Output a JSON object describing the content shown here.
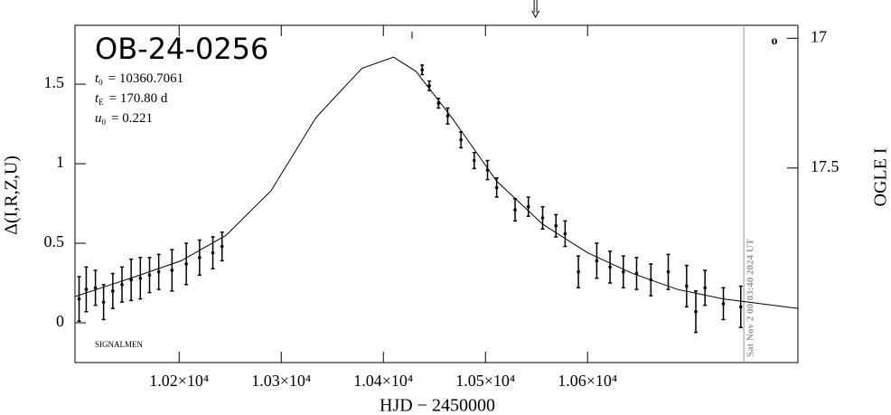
{
  "chart_data": {
    "type": "lightcurve",
    "title": "OB-24-0256",
    "parameters": [
      {
        "symbol": "t",
        "subscript": "0",
        "text": "= 10360.7061"
      },
      {
        "symbol": "t",
        "subscript": "E",
        "text": "= 170.80 d"
      },
      {
        "symbol": "u",
        "subscript": "0",
        "text": "= 0.221"
      }
    ],
    "credit": "SIGNALMEN",
    "x_label": "HJD − 2450000",
    "y_label": "Δ(I,R,Z,U)",
    "y2_label": "OGLE I",
    "legend_symbol": "o",
    "top_mark": "I",
    "time_line": {
      "x": 10753,
      "label": "Sat Nov  2 00:03:40 2024 UT",
      "color": "#999999"
    },
    "arrow_x": 10549,
    "xlim": [
      10098,
      10806
    ],
    "ylim": [
      -0.25,
      1.87
    ],
    "y2lim": [
      18.25,
      16.95
    ],
    "xticks": [
      {
        "value": 10200,
        "label": "1.02×10⁴"
      },
      {
        "value": 10300,
        "label": "1.03×10⁴"
      },
      {
        "value": 10400,
        "label": "1.04×10⁴"
      },
      {
        "value": 10500,
        "label": "1.05×10⁴"
      },
      {
        "value": 10600,
        "label": "1.06×10⁴"
      }
    ],
    "yticks": [
      0,
      0.5,
      1,
      1.5
    ],
    "y2ticks": [
      17,
      17.5
    ],
    "series": [
      {
        "kind": "model",
        "color": "#000000",
        "x": [
          10098,
          10157,
          10202,
          10246,
          10290,
          10334,
          10379,
          10410,
          10432,
          10467,
          10511,
          10556,
          10600,
          10644,
          10688,
          10733,
          10806
        ],
        "values": [
          0.165,
          0.29,
          0.39,
          0.55,
          0.83,
          1.29,
          1.6,
          1.67,
          1.58,
          1.29,
          0.89,
          0.62,
          0.44,
          0.31,
          0.21,
          0.15,
          0.09
        ]
      },
      {
        "kind": "data",
        "color": "#000000",
        "x": [
          10102,
          10109,
          10118,
          10126,
          10135,
          10144,
          10153,
          10162,
          10171,
          10180,
          10193,
          10207,
          10220,
          10233,
          10242,
          10438,
          10445,
          10454,
          10463,
          10476,
          10489,
          10502,
          10511,
          10529,
          10542,
          10556,
          10569,
          10578,
          10591,
          10609,
          10622,
          10635,
          10648,
          10662,
          10679,
          10697,
          10706,
          10715,
          10733,
          10750
        ],
        "values": [
          0.15,
          0.21,
          0.22,
          0.13,
          0.2,
          0.24,
          0.27,
          0.28,
          0.3,
          0.32,
          0.33,
          0.37,
          0.41,
          0.44,
          0.48,
          1.59,
          1.49,
          1.38,
          1.3,
          1.15,
          1.02,
          0.96,
          0.85,
          0.71,
          0.73,
          0.66,
          0.61,
          0.56,
          0.32,
          0.39,
          0.35,
          0.32,
          0.31,
          0.27,
          0.32,
          0.23,
          0.07,
          0.22,
          0.12,
          0.1
        ],
        "errors": [
          0.14,
          0.14,
          0.11,
          0.11,
          0.11,
          0.11,
          0.13,
          0.13,
          0.11,
          0.11,
          0.13,
          0.13,
          0.11,
          0.1,
          0.09,
          0.03,
          0.03,
          0.03,
          0.05,
          0.05,
          0.05,
          0.06,
          0.06,
          0.07,
          0.06,
          0.07,
          0.07,
          0.08,
          0.1,
          0.11,
          0.1,
          0.1,
          0.1,
          0.1,
          0.11,
          0.13,
          0.13,
          0.11,
          0.1,
          0.13
        ]
      }
    ]
  }
}
